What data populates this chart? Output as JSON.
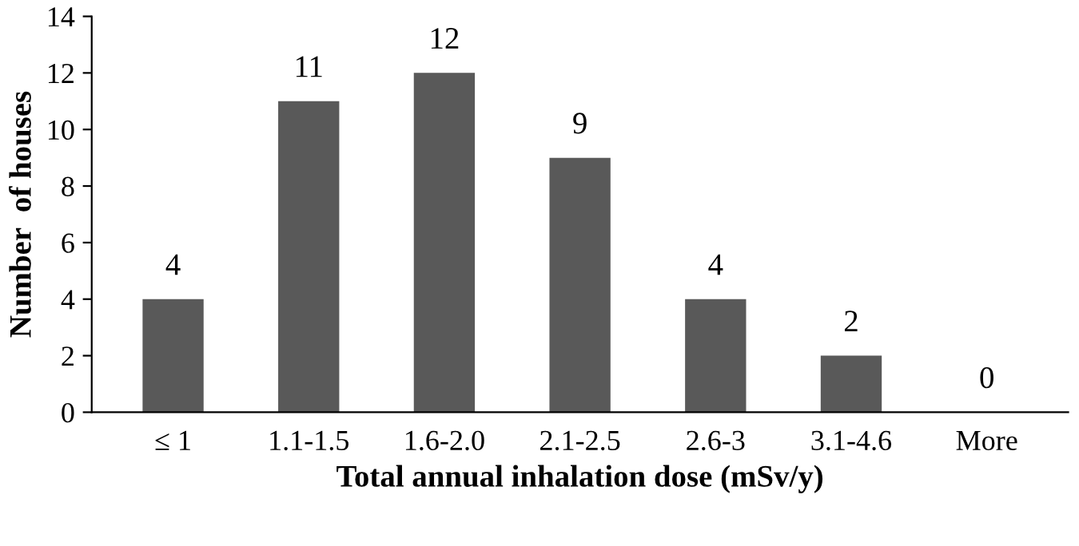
{
  "chart_data": {
    "type": "bar",
    "xlabel": "Total annual inhalation dose (mSv/y)",
    "ylabel": "Number  of houses",
    "categories": [
      "≤ 1",
      "1.1-1.5",
      "1.6-2.0",
      "2.1-2.5",
      "2.6-3",
      "3.1-4.6",
      "More"
    ],
    "values": [
      4,
      11,
      12,
      9,
      4,
      2,
      0
    ],
    "color": "#595959",
    "ylim": [
      0,
      14
    ],
    "yticks": [
      0,
      2,
      4,
      6,
      8,
      10,
      12,
      14
    ],
    "data_labels": true,
    "grid": false,
    "legend": false
  }
}
